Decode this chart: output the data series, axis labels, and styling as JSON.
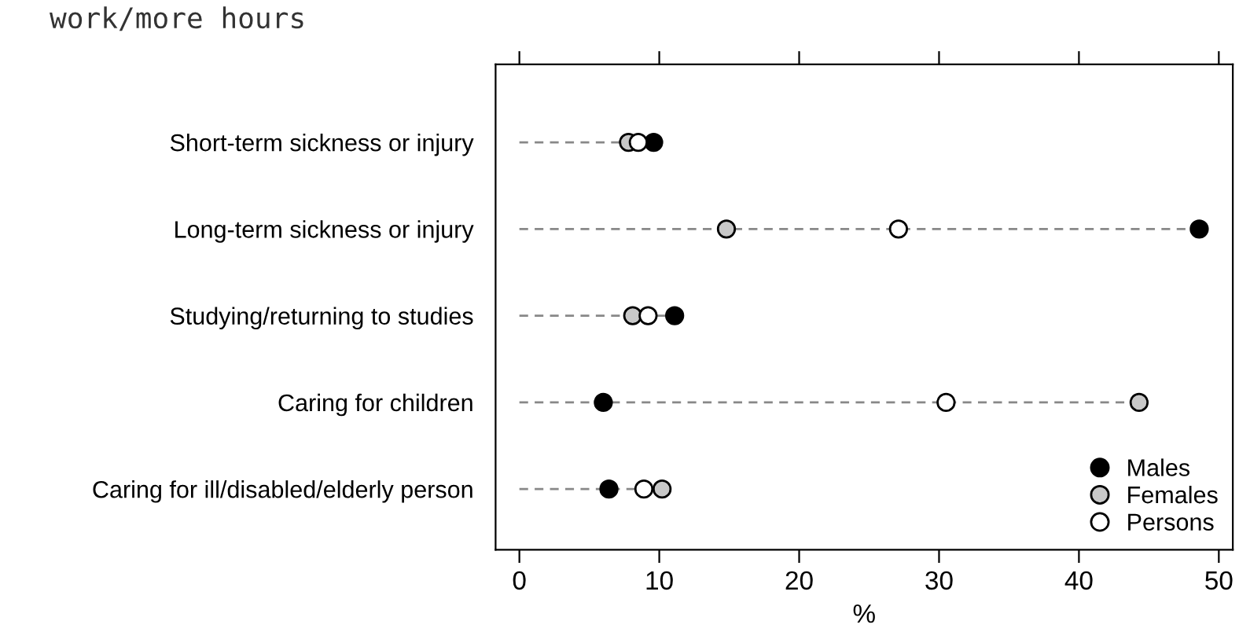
{
  "chart_data": {
    "type": "scatter",
    "title": "work/more hours",
    "xlabel": "%",
    "categories": [
      "Short-term sickness or injury",
      "Long-term sickness or injury",
      "Studying/returning to studies",
      "Caring for children",
      "Caring for ill/disabled/elderly person"
    ],
    "orientation": "horizontal",
    "series": [
      {
        "name": "Males",
        "color": "#000000",
        "values": [
          9.6,
          48.6,
          11.1,
          6.0,
          6.4
        ]
      },
      {
        "name": "Females",
        "color": "#c8c8c8",
        "values": [
          7.8,
          14.8,
          8.1,
          44.3,
          10.2
        ]
      },
      {
        "name": "Persons",
        "color": "#ffffff",
        "values": [
          8.5,
          27.1,
          9.2,
          30.5,
          8.9
        ]
      }
    ],
    "xlim": [
      -1.7,
      51
    ],
    "xticks": [
      0,
      10,
      20,
      30,
      40,
      50
    ],
    "legend": "lower right",
    "marker": "circle",
    "grid": false
  }
}
